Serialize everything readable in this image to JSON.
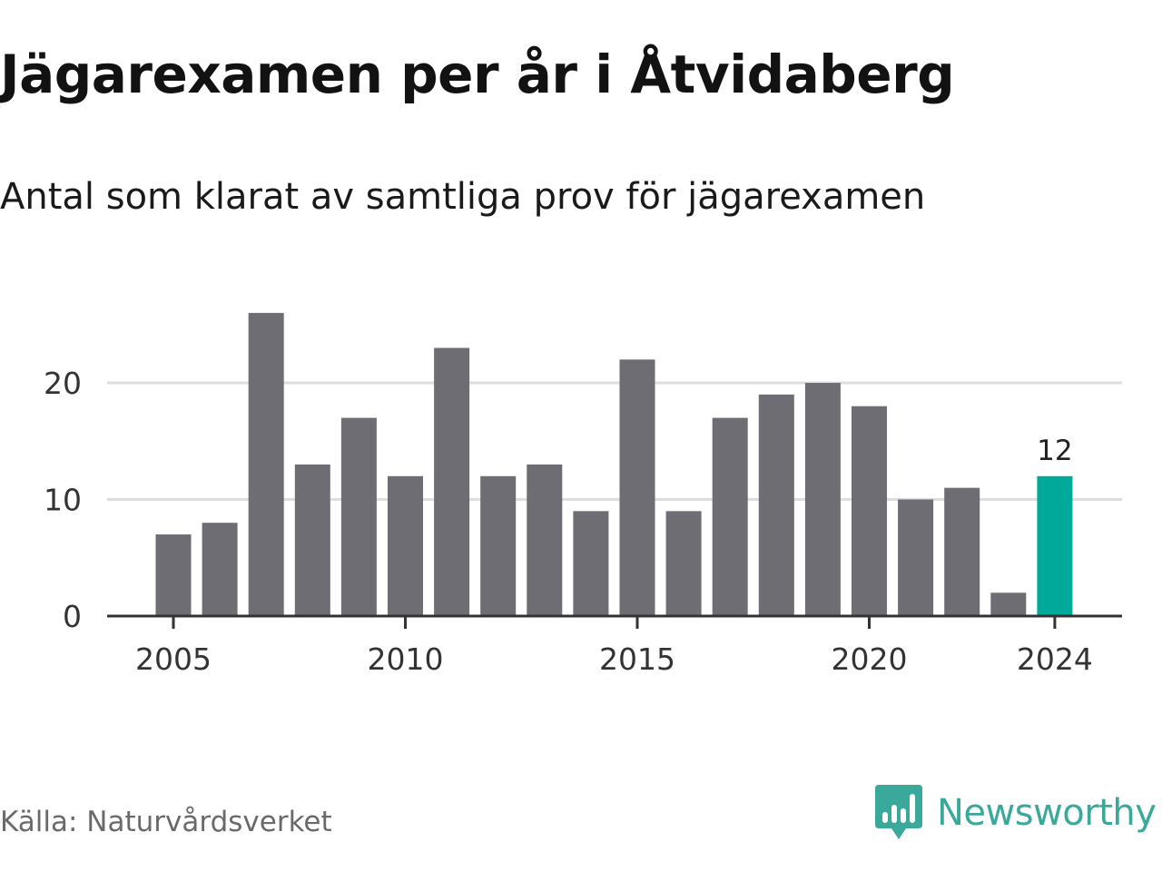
{
  "header": {
    "title": "Jägarexamen per år i Åtvidaberg",
    "subtitle": "Antal som klarat av samtliga prov för jägarexamen"
  },
  "footer": {
    "source": "Källa: Naturvårdsverket",
    "brand": "Newsworthy",
    "brand_icon": "newsworthy-logo-icon"
  },
  "colors": {
    "bar": "#6e6d73",
    "highlight": "#00a99a",
    "grid": "#dddddd",
    "axis": "#333333",
    "brand": "#3aa89a"
  },
  "chart_data": {
    "type": "bar",
    "title": "Jägarexamen per år i Åtvidaberg",
    "subtitle": "Antal som klarat av samtliga prov för jägarexamen",
    "xlabel": "",
    "ylabel": "",
    "x": [
      2005,
      2006,
      2007,
      2008,
      2009,
      2010,
      2011,
      2012,
      2013,
      2014,
      2015,
      2016,
      2017,
      2018,
      2019,
      2020,
      2021,
      2022,
      2023,
      2024
    ],
    "values": [
      7,
      8,
      26,
      13,
      17,
      12,
      23,
      12,
      13,
      9,
      22,
      9,
      17,
      19,
      20,
      18,
      10,
      11,
      2,
      12
    ],
    "ylim": [
      0,
      28
    ],
    "yticks": [
      0,
      10,
      20
    ],
    "xticks": [
      2005,
      2010,
      2015,
      2020,
      2024
    ],
    "highlight_index": 19,
    "data_labels": [
      {
        "index": 19,
        "text": "12"
      }
    ],
    "grid": true
  }
}
